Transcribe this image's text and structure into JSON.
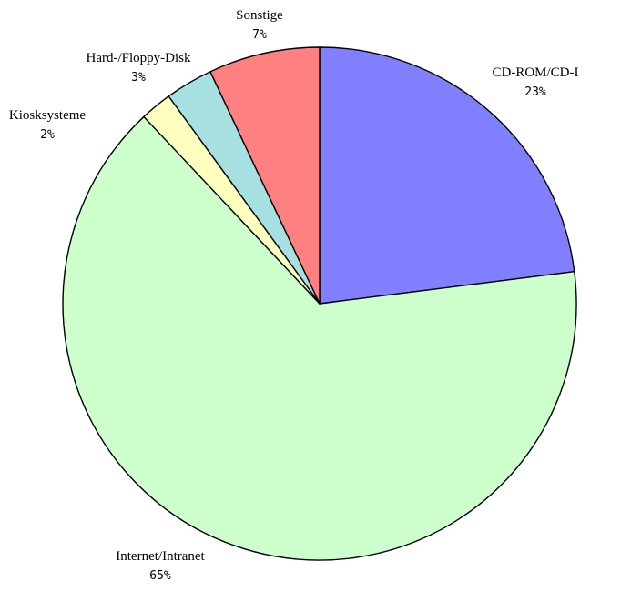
{
  "chart_data": {
    "type": "pie",
    "slices": [
      {
        "label": "CD-ROM/CD-I",
        "value": 23,
        "value_label": "23%",
        "color": "#8080ff"
      },
      {
        "label": "Internet/Intranet",
        "value": 65,
        "value_label": "65%",
        "color": "#ccffcc"
      },
      {
        "label": "Kiosksysteme",
        "value": 2,
        "value_label": "2%",
        "color": "#ffffc0"
      },
      {
        "label": "Hard-/Floppy-Disk",
        "value": 3,
        "value_label": "3%",
        "color": "#a6e0e0"
      },
      {
        "label": "Sonstige",
        "value": 7,
        "value_label": "7%",
        "color": "#ff8080"
      }
    ],
    "start_angle_deg": 0,
    "direction": "clockwise",
    "legend": "none"
  }
}
